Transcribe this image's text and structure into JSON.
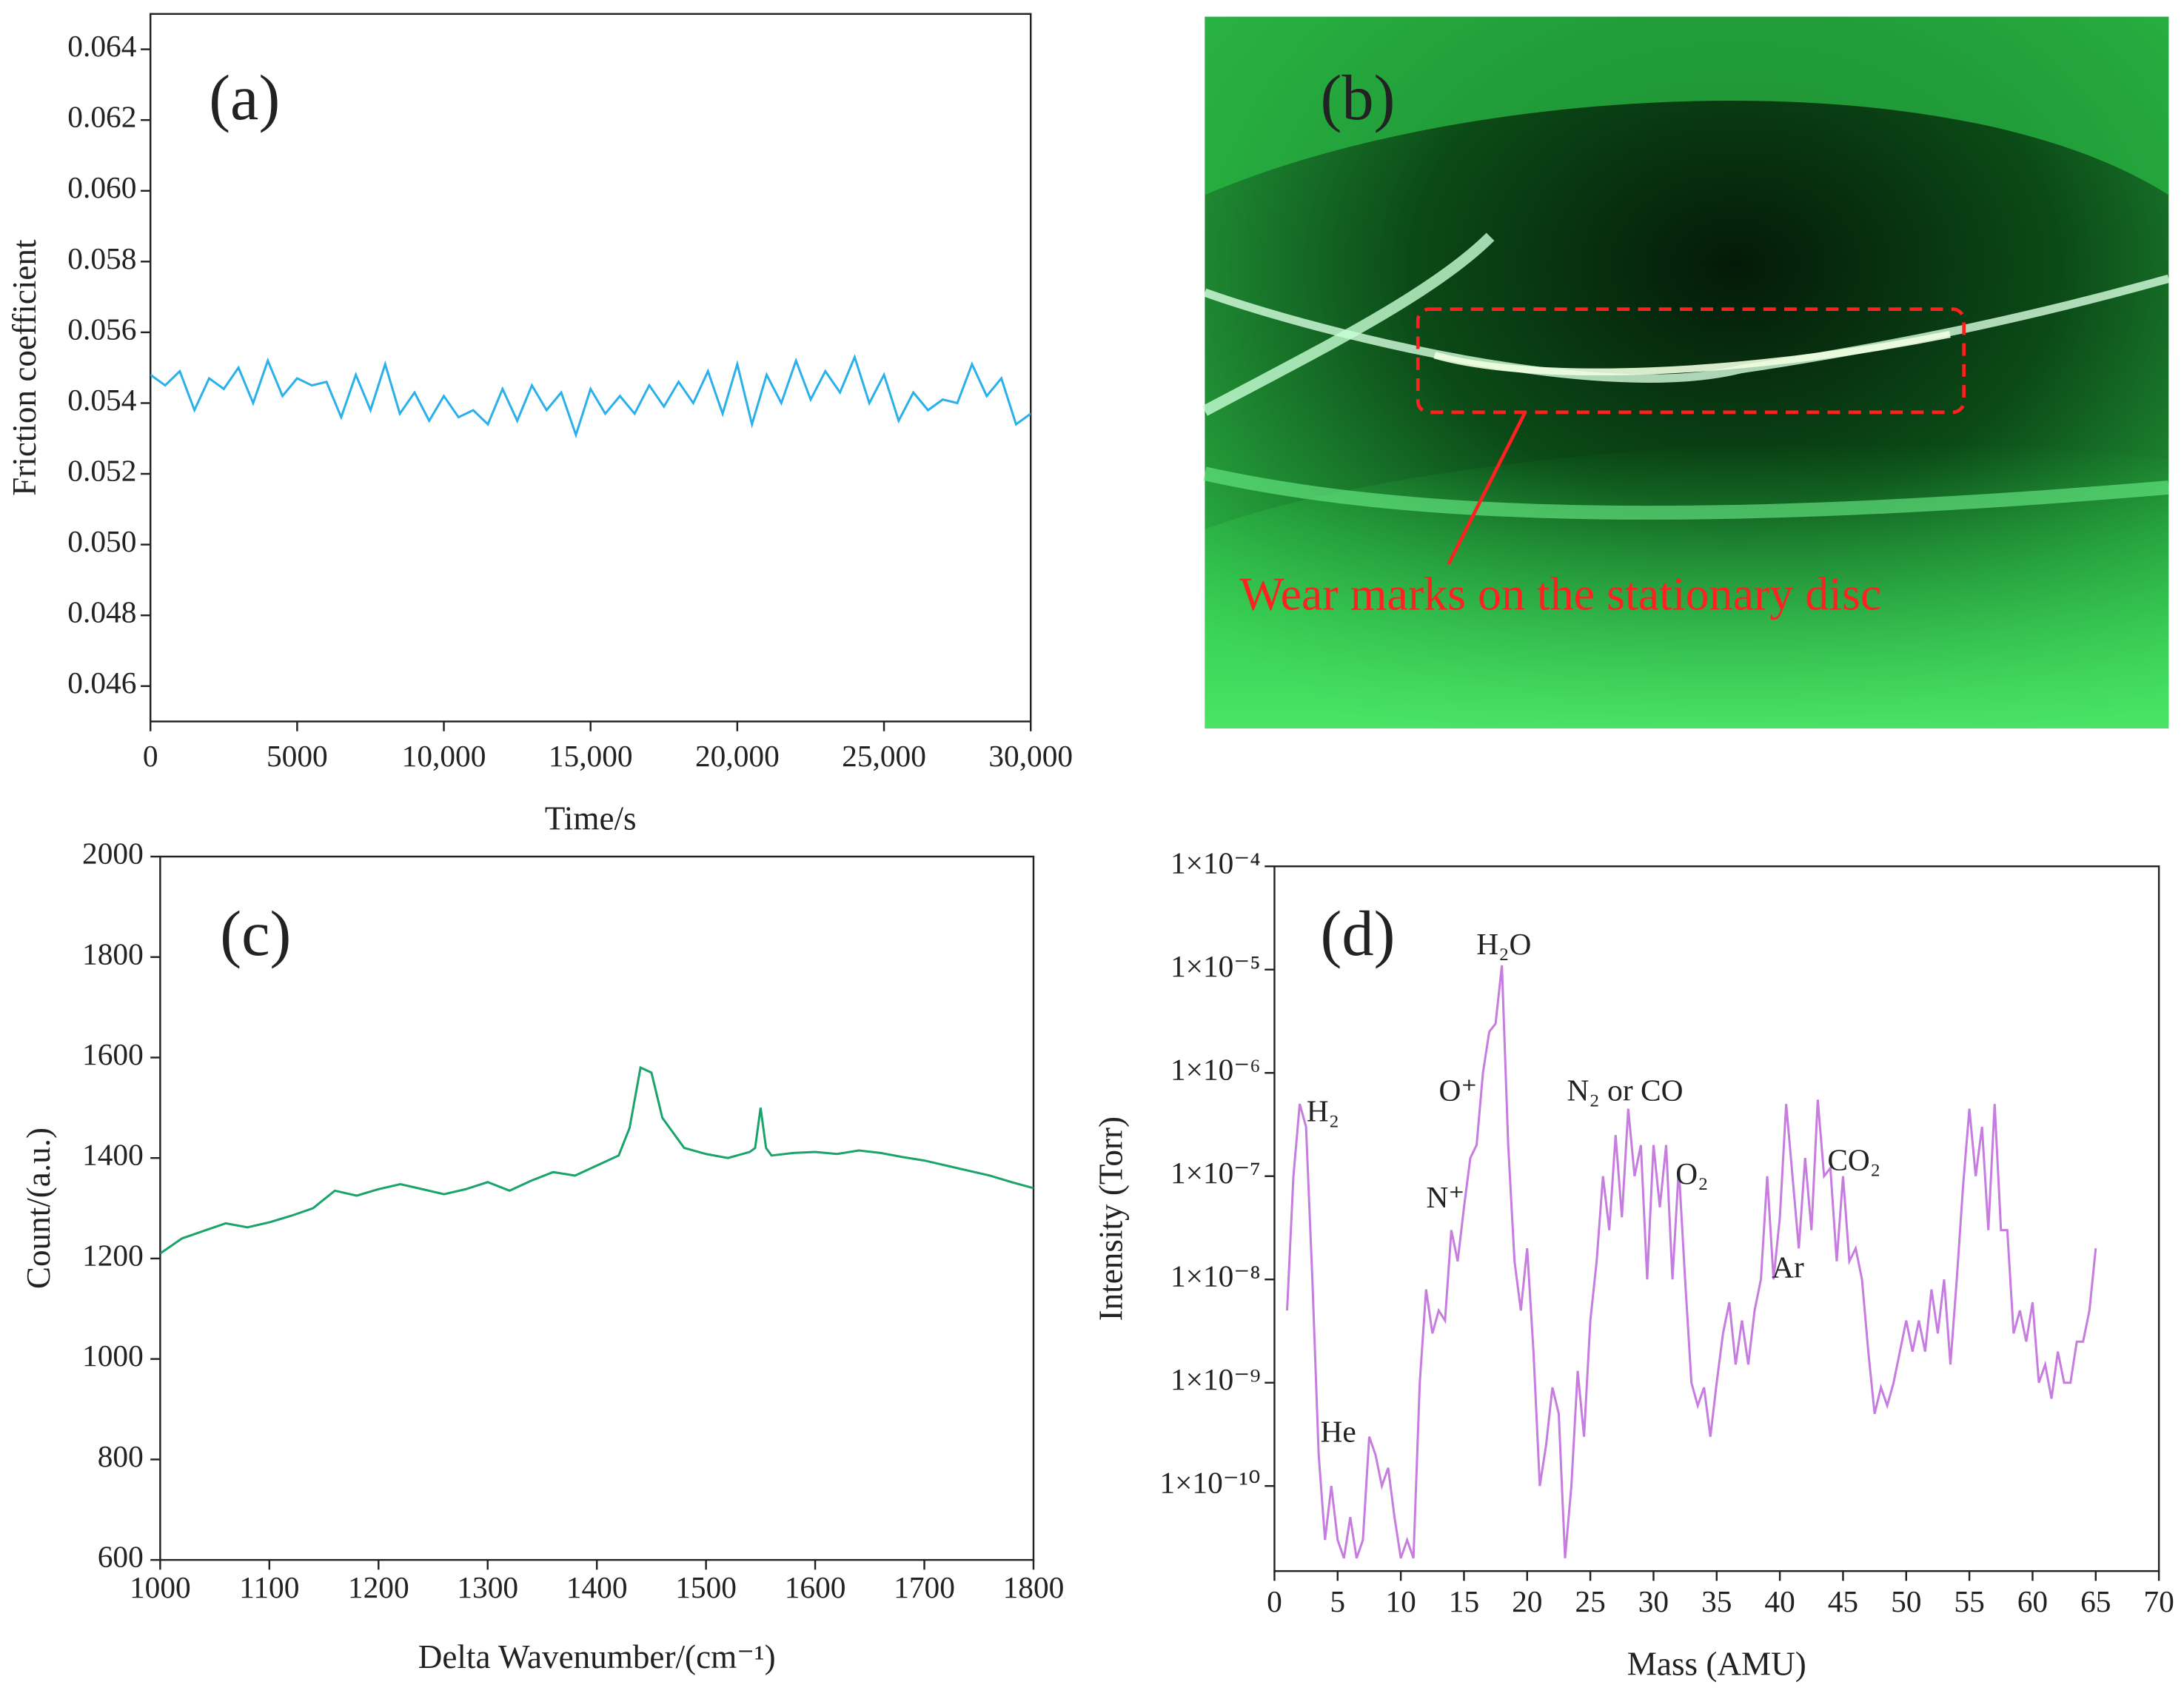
{
  "chart_data": [
    {
      "type": "line",
      "panel_label": "(a)",
      "xlabel": "Time/s",
      "ylabel": "Friction coefficient",
      "xlim": [
        0,
        30000
      ],
      "ylim": [
        0.045,
        0.065
      ],
      "xticks": [
        0,
        5000,
        {
          "value": 10000,
          "label": "10,000"
        },
        {
          "value": 15000,
          "label": "15,000"
        },
        {
          "value": 20000,
          "label": "20,000"
        },
        {
          "value": 25000,
          "label": "25,000"
        },
        {
          "value": 30000,
          "label": "30,000"
        }
      ],
      "yticks": [
        0.046,
        0.048,
        {
          "value": 0.05,
          "label": "0.050"
        },
        0.052,
        0.054,
        0.056,
        0.058,
        {
          "value": 0.06,
          "label": "0.060"
        },
        0.062,
        0.064
      ],
      "x": [
        0,
        500,
        1000,
        1500,
        2000,
        2500,
        3000,
        3500,
        4000,
        4500,
        5000,
        5500,
        6000,
        6500,
        7000,
        7500,
        8000,
        8500,
        9000,
        9500,
        10000,
        10500,
        11000,
        11500,
        12000,
        12500,
        13000,
        13500,
        14000,
        14500,
        15000,
        15500,
        16000,
        16500,
        17000,
        17500,
        18000,
        18500,
        19000,
        19500,
        20000,
        20500,
        21000,
        21500,
        22000,
        22500,
        23000,
        23500,
        24000,
        24500,
        25000,
        25500,
        26000,
        26500,
        27000,
        27500,
        28000,
        28500,
        29000,
        29500,
        30000
      ],
      "series": [
        {
          "color": "#2ab0ea",
          "values": [
            0.0548,
            0.0545,
            0.0549,
            0.0538,
            0.0547,
            0.0544,
            0.055,
            0.054,
            0.0552,
            0.0542,
            0.0547,
            0.0545,
            0.0546,
            0.0536,
            0.0548,
            0.0538,
            0.0551,
            0.0537,
            0.0543,
            0.0535,
            0.0542,
            0.0536,
            0.0538,
            0.0534,
            0.0544,
            0.0535,
            0.0545,
            0.0538,
            0.0543,
            0.0531,
            0.0544,
            0.0537,
            0.0542,
            0.0537,
            0.0545,
            0.0539,
            0.0546,
            0.054,
            0.0549,
            0.0537,
            0.0551,
            0.0534,
            0.0548,
            0.054,
            0.0552,
            0.0541,
            0.0549,
            0.0543,
            0.0553,
            0.054,
            0.0548,
            0.0535,
            0.0543,
            0.0538,
            0.0541,
            0.054,
            0.0551,
            0.0542,
            0.0547,
            0.0534,
            0.0537
          ]
        }
      ]
    },
    {
      "type": "line",
      "panel_label": "(c)",
      "xlabel": "Delta Wavenumber/(cm⁻¹)",
      "ylabel": "Count/(a.u.)",
      "xlim": [
        1000,
        1800
      ],
      "ylim": [
        600,
        2000
      ],
      "xticks": [
        1000,
        1100,
        1200,
        1300,
        1400,
        1500,
        1600,
        1700,
        1800
      ],
      "yticks": [
        600,
        800,
        1000,
        1200,
        1400,
        1600,
        1800,
        2000
      ],
      "x": [
        1000,
        1020,
        1040,
        1060,
        1080,
        1100,
        1120,
        1140,
        1160,
        1180,
        1200,
        1220,
        1240,
        1260,
        1280,
        1300,
        1320,
        1340,
        1360,
        1380,
        1400,
        1420,
        1430,
        1440,
        1450,
        1460,
        1480,
        1500,
        1520,
        1540,
        1545,
        1550,
        1555,
        1560,
        1580,
        1600,
        1620,
        1640,
        1660,
        1680,
        1700,
        1720,
        1740,
        1760,
        1780,
        1800
      ],
      "series": [
        {
          "color": "#1aa36b",
          "values": [
            1210,
            1240,
            1255,
            1270,
            1262,
            1272,
            1285,
            1300,
            1335,
            1325,
            1338,
            1348,
            1338,
            1328,
            1338,
            1352,
            1335,
            1355,
            1372,
            1365,
            1385,
            1405,
            1460,
            1580,
            1570,
            1480,
            1420,
            1408,
            1400,
            1412,
            1420,
            1500,
            1420,
            1405,
            1410,
            1412,
            1408,
            1415,
            1410,
            1402,
            1395,
            1385,
            1375,
            1365,
            1352,
            1340
          ]
        }
      ]
    },
    {
      "type": "line",
      "panel_label": "(d)",
      "xlabel": "Mass (AMU)",
      "ylabel": "Intensity (Torr)",
      "yscale": "log",
      "xlim": [
        0,
        70
      ],
      "ylim": [
        1.5e-11,
        0.0001
      ],
      "xticks": [
        0,
        5,
        10,
        15,
        20,
        25,
        30,
        35,
        40,
        45,
        50,
        55,
        60,
        65,
        70
      ],
      "yticks": [
        {
          "value": 1e-10,
          "label": "1×10⁻¹⁰"
        },
        {
          "value": 1e-09,
          "label": "1×10⁻⁹"
        },
        {
          "value": 1e-08,
          "label": "1×10⁻⁸"
        },
        {
          "value": 1e-07,
          "label": "1×10⁻⁷"
        },
        {
          "value": 1e-06,
          "label": "1×10⁻⁶"
        },
        {
          "value": 1e-05,
          "label": "1×10⁻⁵"
        },
        {
          "value": 0.0001,
          "label": "1×10⁻⁴"
        }
      ],
      "annotations": [
        "H₂",
        "He",
        "N⁺",
        "O⁺",
        "H₂O",
        "N₂ or CO",
        "O₂",
        "Ar",
        "CO₂"
      ],
      "x": [
        1,
        1.5,
        2,
        2.5,
        3,
        3.5,
        4,
        4.5,
        5,
        5.5,
        6,
        6.5,
        7,
        7.5,
        8,
        8.5,
        9,
        9.5,
        10,
        10.5,
        11,
        11.5,
        12,
        12.5,
        13,
        13.5,
        14,
        14.5,
        15,
        15.5,
        16,
        16.5,
        17,
        17.5,
        18,
        18.5,
        19,
        19.5,
        20,
        20.5,
        21,
        21.5,
        22,
        22.5,
        23,
        23.5,
        24,
        24.5,
        25,
        25.5,
        26,
        26.5,
        27,
        27.5,
        28,
        28.5,
        29,
        29.5,
        30,
        30.5,
        31,
        31.5,
        32,
        32.5,
        33,
        33.5,
        34,
        34.5,
        35,
        35.5,
        36,
        36.5,
        37,
        37.5,
        38,
        38.5,
        39,
        39.5,
        40,
        40.5,
        41,
        41.5,
        42,
        42.5,
        43,
        43.5,
        44,
        44.5,
        45,
        45.5,
        46,
        46.5,
        47,
        47.5,
        48,
        48.5,
        49,
        49.5,
        50,
        50.5,
        51,
        51.5,
        52,
        52.5,
        53,
        53.5,
        54,
        54.5,
        55,
        55.5,
        56,
        56.5,
        57,
        57.5,
        58,
        58.5,
        59,
        59.5,
        60,
        60.5,
        61,
        61.5,
        62,
        62.5,
        63,
        63.5,
        64,
        64.5,
        65
      ],
      "series": [
        {
          "color": "#c77ce0",
          "values": [
            5e-09,
            1e-07,
            5e-07,
            3e-07,
            1e-08,
            2e-10,
            3e-11,
            1e-10,
            3e-11,
            2e-11,
            5e-11,
            2e-11,
            3e-11,
            3e-10,
            2e-10,
            1e-10,
            1.5e-10,
            5e-11,
            2e-11,
            3e-11,
            2e-11,
            1e-09,
            8e-09,
            3e-09,
            5e-09,
            4e-09,
            3e-08,
            1.5e-08,
            5e-08,
            1.5e-07,
            2e-07,
            1e-06,
            2.5e-06,
            3e-06,
            1.1e-05,
            2e-07,
            1.5e-08,
            5e-09,
            2e-08,
            2e-09,
            1e-10,
            2.5e-10,
            9e-10,
            5e-10,
            2e-11,
            1e-10,
            1.3e-09,
            3e-10,
            4e-09,
            1.5e-08,
            1e-07,
            3e-08,
            2.5e-07,
            4e-08,
            4.5e-07,
            1e-07,
            2e-07,
            1e-08,
            2e-07,
            5e-08,
            2e-07,
            1e-08,
            1.2e-07,
            1e-08,
            1e-09,
            6e-10,
            9e-10,
            3e-10,
            1e-09,
            3e-09,
            6e-09,
            1.5e-09,
            4e-09,
            1.5e-09,
            5e-09,
            1e-08,
            1e-07,
            1e-08,
            4e-08,
            5e-07,
            1e-07,
            2e-08,
            1.5e-07,
            3e-08,
            5.5e-07,
            1e-07,
            1.2e-07,
            1.5e-08,
            1e-07,
            1.5e-08,
            2e-08,
            1e-08,
            2e-09,
            5e-10,
            9e-10,
            6e-10,
            1e-09,
            2e-09,
            4e-09,
            2e-09,
            4e-09,
            2e-09,
            8e-09,
            3e-09,
            1e-08,
            1.5e-09,
            1e-08,
            8e-08,
            4.5e-07,
            1e-07,
            3e-07,
            3e-08,
            5e-07,
            3e-08,
            3e-08,
            3e-09,
            5e-09,
            2.5e-09,
            6e-09,
            1e-09,
            1.5e-09,
            7e-10,
            2e-09,
            1e-09,
            1e-09,
            2.5e-09,
            2.5e-09,
            5e-09,
            2e-08
          ]
        }
      ]
    }
  ],
  "photo": {
    "panel_label": "(b)",
    "annotation": "Wear marks on the stationary disc"
  }
}
